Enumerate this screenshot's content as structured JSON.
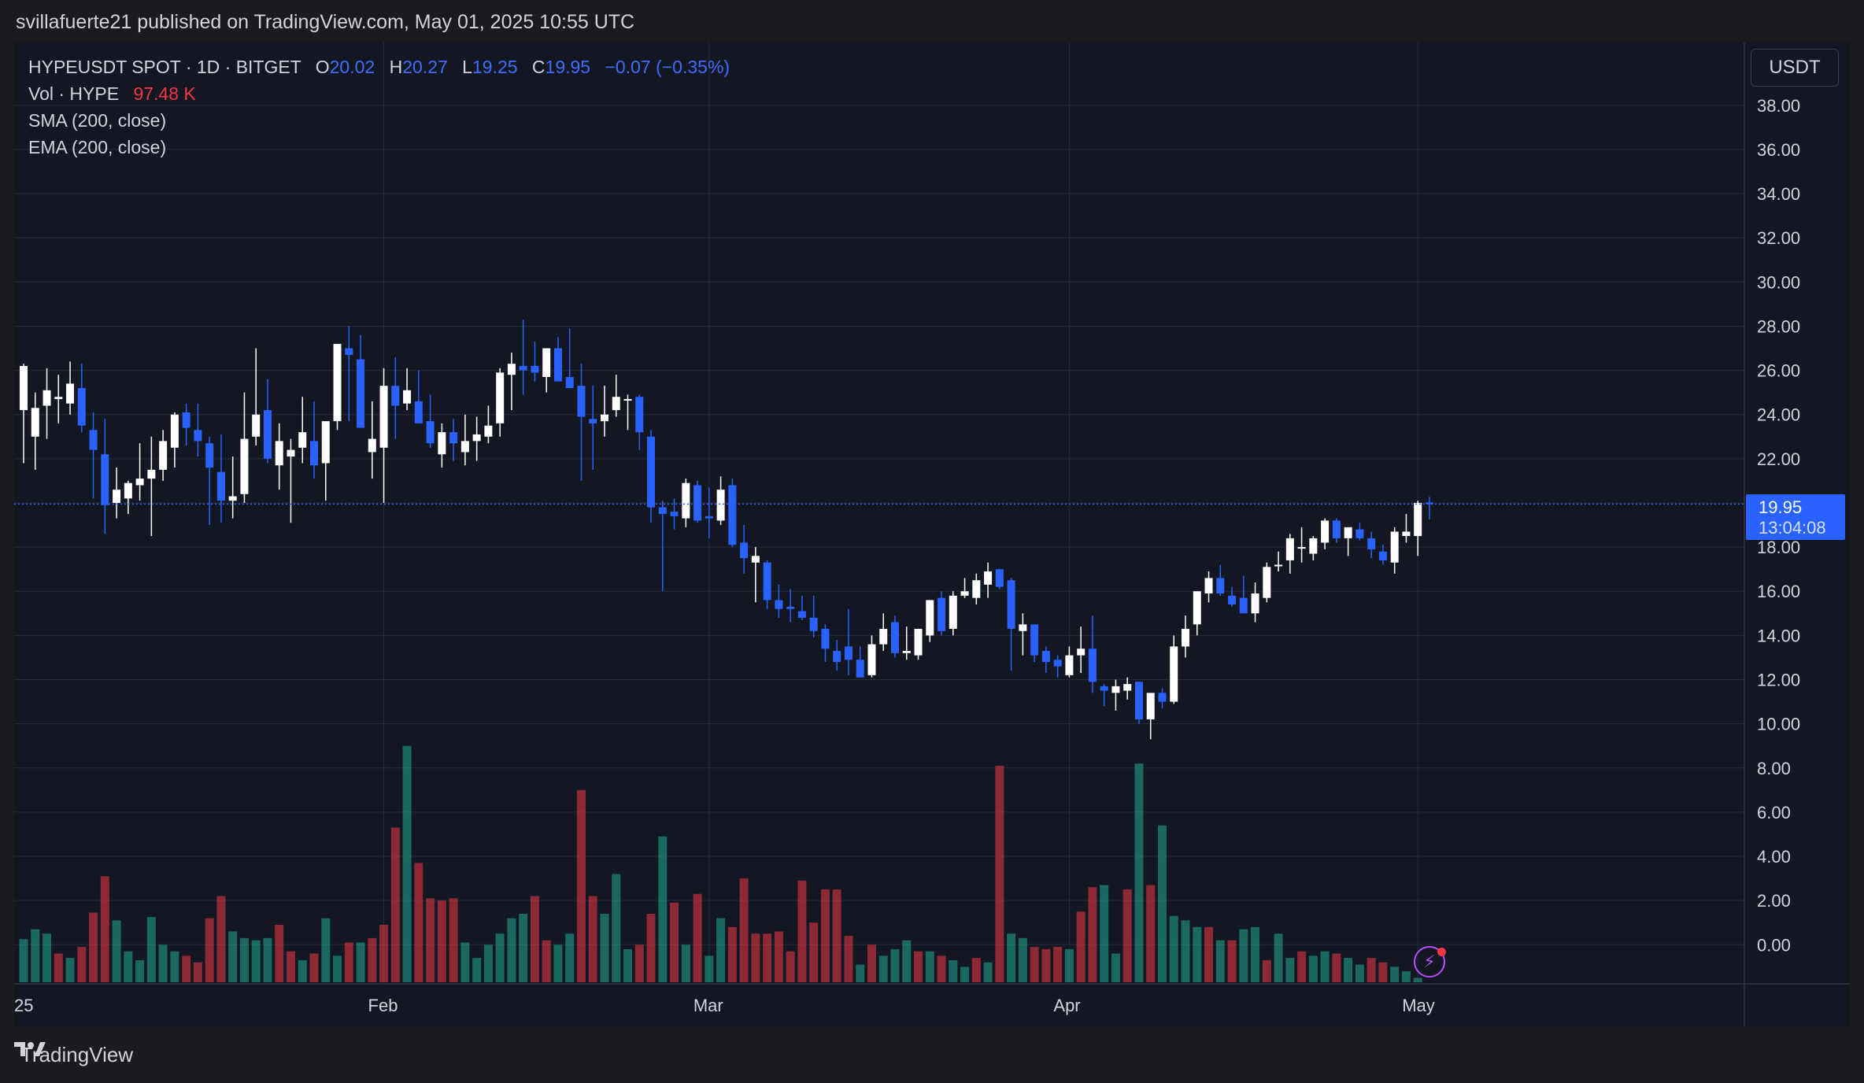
{
  "header": {
    "published": "svillafuerte21 published on TradingView.com, May 01, 2025 10:55 UTC"
  },
  "legend": {
    "symbol": "HYPEUSDT SPOT · 1D · BITGET",
    "o_label": "O",
    "o_value": "20.02",
    "h_label": "H",
    "h_value": "20.27",
    "l_label": "L",
    "l_value": "19.25",
    "c_label": "C",
    "c_value": "19.95",
    "change": "−0.07 (−0.35%)",
    "vol_label": "Vol · HYPE",
    "vol_value": "97.48 K",
    "sma": "SMA (200, close)",
    "ema": "EMA (200, close)"
  },
  "currency": "USDT",
  "price_tag": {
    "price": "19.95",
    "countdown": "13:04:08"
  },
  "footer": {
    "brand": "TradingView"
  },
  "colors": {
    "up": "#ffffff",
    "down": "#2962ff",
    "vol_up": "#22ab94",
    "vol_down": "#f23645",
    "bg": "#131722",
    "grid": "#262b38"
  },
  "chart_data": {
    "type": "candlestick",
    "y_ticks": [
      "38.00",
      "36.00",
      "34.00",
      "32.00",
      "30.00",
      "28.00",
      "26.00",
      "24.00",
      "22.00",
      "20.00",
      "18.00",
      "16.00",
      "14.00",
      "12.00",
      "10.00",
      "8.00",
      "6.00",
      "4.00",
      "2.00",
      "0.00"
    ],
    "x_ticks": [
      {
        "label": "25",
        "day": 0
      },
      {
        "label": "Feb",
        "day": 31
      },
      {
        "label": "Mar",
        "day": 59
      },
      {
        "label": "Apr",
        "day": 90
      },
      {
        "label": "May",
        "day": 120
      }
    ],
    "ylim": [
      -1.7,
      40.7
    ],
    "last_price": 19.95,
    "candles": [
      {
        "o": 24.2,
        "h": 26.3,
        "l": 21.8,
        "c": 26.2
      },
      {
        "o": 23.0,
        "h": 25.0,
        "l": 21.5,
        "c": 24.3
      },
      {
        "o": 24.4,
        "h": 26.1,
        "l": 22.9,
        "c": 25.1
      },
      {
        "o": 24.7,
        "h": 25.8,
        "l": 23.6,
        "c": 24.8
      },
      {
        "o": 24.5,
        "h": 26.4,
        "l": 24.0,
        "c": 25.4
      },
      {
        "o": 25.2,
        "h": 26.3,
        "l": 23.2,
        "c": 23.5
      },
      {
        "o": 23.3,
        "h": 24.1,
        "l": 20.2,
        "c": 22.4
      },
      {
        "o": 22.2,
        "h": 23.8,
        "l": 18.6,
        "c": 19.9
      },
      {
        "o": 20.0,
        "h": 21.6,
        "l": 19.3,
        "c": 20.6
      },
      {
        "o": 20.2,
        "h": 21.0,
        "l": 19.5,
        "c": 20.9
      },
      {
        "o": 20.8,
        "h": 22.7,
        "l": 20.1,
        "c": 21.1
      },
      {
        "o": 21.1,
        "h": 23.0,
        "l": 18.5,
        "c": 21.5
      },
      {
        "o": 21.5,
        "h": 23.3,
        "l": 21.0,
        "c": 22.8
      },
      {
        "o": 22.5,
        "h": 24.1,
        "l": 21.6,
        "c": 24.0
      },
      {
        "o": 24.1,
        "h": 24.5,
        "l": 22.6,
        "c": 23.4
      },
      {
        "o": 23.3,
        "h": 24.5,
        "l": 22.1,
        "c": 22.8
      },
      {
        "o": 22.7,
        "h": 23.0,
        "l": 19.0,
        "c": 21.6
      },
      {
        "o": 21.4,
        "h": 23.1,
        "l": 19.1,
        "c": 20.1
      },
      {
        "o": 20.1,
        "h": 22.1,
        "l": 19.3,
        "c": 20.3
      },
      {
        "o": 20.4,
        "h": 25.0,
        "l": 20.0,
        "c": 22.9
      },
      {
        "o": 23.0,
        "h": 27.0,
        "l": 22.6,
        "c": 24.0
      },
      {
        "o": 24.2,
        "h": 25.6,
        "l": 21.8,
        "c": 22.0
      },
      {
        "o": 21.7,
        "h": 23.6,
        "l": 20.6,
        "c": 22.8
      },
      {
        "o": 22.1,
        "h": 22.9,
        "l": 19.1,
        "c": 22.4
      },
      {
        "o": 22.5,
        "h": 24.8,
        "l": 21.8,
        "c": 23.2
      },
      {
        "o": 22.8,
        "h": 24.6,
        "l": 21.1,
        "c": 21.7
      },
      {
        "o": 21.8,
        "h": 23.5,
        "l": 20.1,
        "c": 23.7
      },
      {
        "o": 23.7,
        "h": 27.0,
        "l": 23.3,
        "c": 27.2
      },
      {
        "o": 27.0,
        "h": 28.0,
        "l": 23.7,
        "c": 26.7
      },
      {
        "o": 26.5,
        "h": 27.6,
        "l": 23.4,
        "c": 23.4
      },
      {
        "o": 22.3,
        "h": 24.6,
        "l": 21.1,
        "c": 22.9
      },
      {
        "o": 22.5,
        "h": 26.1,
        "l": 20.0,
        "c": 25.3
      },
      {
        "o": 25.3,
        "h": 26.6,
        "l": 22.9,
        "c": 24.4
      },
      {
        "o": 24.5,
        "h": 26.1,
        "l": 24.2,
        "c": 25.1
      },
      {
        "o": 24.6,
        "h": 26.0,
        "l": 23.9,
        "c": 23.6
      },
      {
        "o": 23.7,
        "h": 24.9,
        "l": 22.5,
        "c": 22.7
      },
      {
        "o": 22.2,
        "h": 23.6,
        "l": 21.6,
        "c": 23.2
      },
      {
        "o": 23.2,
        "h": 23.8,
        "l": 21.9,
        "c": 22.7
      },
      {
        "o": 22.3,
        "h": 24.0,
        "l": 21.7,
        "c": 22.8
      },
      {
        "o": 22.8,
        "h": 23.9,
        "l": 21.9,
        "c": 23.1
      },
      {
        "o": 23.0,
        "h": 24.4,
        "l": 22.7,
        "c": 23.5
      },
      {
        "o": 23.6,
        "h": 26.1,
        "l": 23.0,
        "c": 25.9
      },
      {
        "o": 25.8,
        "h": 26.8,
        "l": 24.2,
        "c": 26.3
      },
      {
        "o": 26.2,
        "h": 28.3,
        "l": 24.9,
        "c": 26.0
      },
      {
        "o": 26.2,
        "h": 27.3,
        "l": 25.5,
        "c": 25.9
      },
      {
        "o": 25.7,
        "h": 26.8,
        "l": 25.0,
        "c": 27.0
      },
      {
        "o": 27.0,
        "h": 27.5,
        "l": 25.6,
        "c": 25.5
      },
      {
        "o": 25.7,
        "h": 27.9,
        "l": 25.3,
        "c": 25.2
      },
      {
        "o": 25.3,
        "h": 26.3,
        "l": 21.0,
        "c": 23.9
      },
      {
        "o": 23.8,
        "h": 25.3,
        "l": 21.5,
        "c": 23.6
      },
      {
        "o": 23.7,
        "h": 25.3,
        "l": 23.0,
        "c": 24.0
      },
      {
        "o": 24.2,
        "h": 25.8,
        "l": 23.9,
        "c": 24.8
      },
      {
        "o": 24.7,
        "h": 24.9,
        "l": 23.3,
        "c": 24.7
      },
      {
        "o": 24.8,
        "h": 24.9,
        "l": 22.4,
        "c": 23.2
      },
      {
        "o": 23.0,
        "h": 23.3,
        "l": 19.1,
        "c": 19.8
      },
      {
        "o": 19.8,
        "h": 20.1,
        "l": 16.0,
        "c": 19.5
      },
      {
        "o": 19.6,
        "h": 20.2,
        "l": 18.8,
        "c": 19.4
      },
      {
        "o": 19.3,
        "h": 21.1,
        "l": 18.9,
        "c": 20.9
      },
      {
        "o": 20.8,
        "h": 21.0,
        "l": 19.1,
        "c": 19.2
      },
      {
        "o": 19.4,
        "h": 20.7,
        "l": 18.4,
        "c": 19.3
      },
      {
        "o": 19.2,
        "h": 21.2,
        "l": 19.0,
        "c": 20.6
      },
      {
        "o": 20.8,
        "h": 21.1,
        "l": 18.0,
        "c": 18.1
      },
      {
        "o": 18.2,
        "h": 19.0,
        "l": 16.8,
        "c": 17.5
      },
      {
        "o": 17.3,
        "h": 18.0,
        "l": 15.5,
        "c": 17.6
      },
      {
        "o": 17.3,
        "h": 17.4,
        "l": 15.2,
        "c": 15.6
      },
      {
        "o": 15.6,
        "h": 16.3,
        "l": 14.8,
        "c": 15.2
      },
      {
        "o": 15.3,
        "h": 16.1,
        "l": 14.6,
        "c": 15.2
      },
      {
        "o": 15.1,
        "h": 15.8,
        "l": 14.7,
        "c": 14.8
      },
      {
        "o": 14.8,
        "h": 15.8,
        "l": 13.9,
        "c": 14.2
      },
      {
        "o": 14.3,
        "h": 14.5,
        "l": 12.8,
        "c": 13.4
      },
      {
        "o": 13.3,
        "h": 13.8,
        "l": 12.4,
        "c": 12.8
      },
      {
        "o": 13.5,
        "h": 15.2,
        "l": 12.2,
        "c": 12.9
      },
      {
        "o": 12.9,
        "h": 13.5,
        "l": 12.1,
        "c": 12.1
      },
      {
        "o": 12.2,
        "h": 14.0,
        "l": 12.1,
        "c": 13.6
      },
      {
        "o": 13.6,
        "h": 15.0,
        "l": 13.3,
        "c": 14.3
      },
      {
        "o": 14.6,
        "h": 14.9,
        "l": 13.0,
        "c": 13.2
      },
      {
        "o": 13.2,
        "h": 14.4,
        "l": 12.9,
        "c": 13.3
      },
      {
        "o": 13.1,
        "h": 14.2,
        "l": 12.9,
        "c": 14.3
      },
      {
        "o": 14.0,
        "h": 15.6,
        "l": 13.7,
        "c": 15.6
      },
      {
        "o": 15.7,
        "h": 16.0,
        "l": 14.0,
        "c": 14.2
      },
      {
        "o": 14.3,
        "h": 16.0,
        "l": 14.0,
        "c": 15.8
      },
      {
        "o": 15.8,
        "h": 16.6,
        "l": 15.7,
        "c": 16.0
      },
      {
        "o": 15.7,
        "h": 16.8,
        "l": 15.4,
        "c": 16.5
      },
      {
        "o": 16.3,
        "h": 17.3,
        "l": 15.7,
        "c": 16.9
      },
      {
        "o": 17.0,
        "h": 17.0,
        "l": 16.1,
        "c": 16.2
      },
      {
        "o": 16.5,
        "h": 16.6,
        "l": 12.4,
        "c": 14.3
      },
      {
        "o": 14.2,
        "h": 15.0,
        "l": 13.1,
        "c": 14.5
      },
      {
        "o": 14.5,
        "h": 14.5,
        "l": 12.8,
        "c": 13.1
      },
      {
        "o": 13.3,
        "h": 13.5,
        "l": 12.3,
        "c": 12.8
      },
      {
        "o": 12.9,
        "h": 13.1,
        "l": 12.1,
        "c": 12.6
      },
      {
        "o": 12.2,
        "h": 13.5,
        "l": 12.1,
        "c": 13.1
      },
      {
        "o": 13.1,
        "h": 14.4,
        "l": 12.3,
        "c": 13.4
      },
      {
        "o": 13.4,
        "h": 14.9,
        "l": 11.4,
        "c": 11.9
      },
      {
        "o": 11.7,
        "h": 11.8,
        "l": 10.8,
        "c": 11.5
      },
      {
        "o": 11.4,
        "h": 12.0,
        "l": 10.6,
        "c": 11.7
      },
      {
        "o": 11.5,
        "h": 12.1,
        "l": 11.1,
        "c": 11.8
      },
      {
        "o": 11.9,
        "h": 11.9,
        "l": 10.0,
        "c": 10.2
      },
      {
        "o": 10.2,
        "h": 11.3,
        "l": 9.3,
        "c": 11.4
      },
      {
        "o": 11.4,
        "h": 11.6,
        "l": 10.7,
        "c": 11.0
      },
      {
        "o": 11.0,
        "h": 14.0,
        "l": 10.9,
        "c": 13.5
      },
      {
        "o": 13.5,
        "h": 14.9,
        "l": 13.0,
        "c": 14.3
      },
      {
        "o": 14.5,
        "h": 16.0,
        "l": 14.0,
        "c": 16.0
      },
      {
        "o": 15.9,
        "h": 16.9,
        "l": 15.5,
        "c": 16.6
      },
      {
        "o": 16.6,
        "h": 17.2,
        "l": 15.8,
        "c": 15.9
      },
      {
        "o": 15.8,
        "h": 16.2,
        "l": 15.3,
        "c": 15.4
      },
      {
        "o": 15.7,
        "h": 16.7,
        "l": 15.0,
        "c": 15.0
      },
      {
        "o": 15.0,
        "h": 16.4,
        "l": 14.6,
        "c": 15.9
      },
      {
        "o": 15.7,
        "h": 17.3,
        "l": 15.5,
        "c": 17.1
      },
      {
        "o": 17.2,
        "h": 17.8,
        "l": 16.9,
        "c": 17.2
      },
      {
        "o": 17.4,
        "h": 18.6,
        "l": 16.8,
        "c": 18.4
      },
      {
        "o": 18.0,
        "h": 18.9,
        "l": 17.3,
        "c": 18.0
      },
      {
        "o": 17.7,
        "h": 18.5,
        "l": 17.4,
        "c": 18.4
      },
      {
        "o": 18.2,
        "h": 19.3,
        "l": 17.9,
        "c": 19.2
      },
      {
        "o": 19.2,
        "h": 19.3,
        "l": 18.2,
        "c": 18.4
      },
      {
        "o": 18.4,
        "h": 18.9,
        "l": 17.6,
        "c": 18.9
      },
      {
        "o": 18.8,
        "h": 19.1,
        "l": 18.3,
        "c": 18.4
      },
      {
        "o": 18.4,
        "h": 18.7,
        "l": 17.5,
        "c": 17.9
      },
      {
        "o": 17.8,
        "h": 18.1,
        "l": 17.2,
        "c": 17.4
      },
      {
        "o": 17.3,
        "h": 18.9,
        "l": 16.8,
        "c": 18.7
      },
      {
        "o": 18.5,
        "h": 19.5,
        "l": 18.2,
        "c": 18.7
      },
      {
        "o": 18.5,
        "h": 20.1,
        "l": 17.6,
        "c": 20.0
      },
      {
        "o": 20.02,
        "h": 20.27,
        "l": 19.25,
        "c": 19.95
      }
    ],
    "volume": [
      {
        "v": 0.25,
        "up": true
      },
      {
        "v": 0.7,
        "up": true
      },
      {
        "v": 0.5,
        "up": true
      },
      {
        "v": -0.4,
        "up": false
      },
      {
        "v": -0.6,
        "up": true
      },
      {
        "v": -0.1,
        "up": false
      },
      {
        "v": 1.45,
        "up": false
      },
      {
        "v": 3.1,
        "up": false
      },
      {
        "v": 1.1,
        "up": true
      },
      {
        "v": -0.3,
        "up": true
      },
      {
        "v": -0.7,
        "up": true
      },
      {
        "v": 1.25,
        "up": true
      },
      {
        "v": 0.0,
        "up": true
      },
      {
        "v": -0.3,
        "up": true
      },
      {
        "v": -0.5,
        "up": false
      },
      {
        "v": -0.8,
        "up": false
      },
      {
        "v": 1.2,
        "up": false
      },
      {
        "v": 2.2,
        "up": false
      },
      {
        "v": 0.6,
        "up": true
      },
      {
        "v": 0.3,
        "up": true
      },
      {
        "v": 0.2,
        "up": true
      },
      {
        "v": 0.3,
        "up": true
      },
      {
        "v": 0.9,
        "up": false
      },
      {
        "v": -0.3,
        "up": false
      },
      {
        "v": -0.7,
        "up": true
      },
      {
        "v": -0.4,
        "up": false
      },
      {
        "v": 1.2,
        "up": true
      },
      {
        "v": -0.5,
        "up": true
      },
      {
        "v": 0.1,
        "up": false
      },
      {
        "v": 0.1,
        "up": true
      },
      {
        "v": 0.3,
        "up": false
      },
      {
        "v": 0.9,
        "up": false
      },
      {
        "v": 5.3,
        "up": false
      },
      {
        "v": 9.0,
        "up": true
      },
      {
        "v": 3.7,
        "up": false
      },
      {
        "v": 2.1,
        "up": false
      },
      {
        "v": 2.0,
        "up": false
      },
      {
        "v": 2.1,
        "up": false
      },
      {
        "v": 0.1,
        "up": true
      },
      {
        "v": -0.6,
        "up": true
      },
      {
        "v": 0.0,
        "up": true
      },
      {
        "v": 0.5,
        "up": true
      },
      {
        "v": 1.2,
        "up": true
      },
      {
        "v": 1.4,
        "up": true
      },
      {
        "v": 2.2,
        "up": false
      },
      {
        "v": 0.2,
        "up": false
      },
      {
        "v": 0.0,
        "up": true
      },
      {
        "v": 0.5,
        "up": true
      },
      {
        "v": 7.0,
        "up": false
      },
      {
        "v": 2.2,
        "up": false
      },
      {
        "v": 1.4,
        "up": true
      },
      {
        "v": 3.2,
        "up": true
      },
      {
        "v": -0.2,
        "up": true
      },
      {
        "v": 0.0,
        "up": false
      },
      {
        "v": 1.4,
        "up": false
      },
      {
        "v": 4.9,
        "up": true
      },
      {
        "v": 1.9,
        "up": false
      },
      {
        "v": 0.0,
        "up": true
      },
      {
        "v": 2.3,
        "up": false
      },
      {
        "v": -0.5,
        "up": true
      },
      {
        "v": 1.2,
        "up": true
      },
      {
        "v": 0.8,
        "up": false
      },
      {
        "v": 3.0,
        "up": false
      },
      {
        "v": 0.5,
        "up": false
      },
      {
        "v": 0.5,
        "up": false
      },
      {
        "v": 0.6,
        "up": false
      },
      {
        "v": -0.3,
        "up": false
      },
      {
        "v": 2.9,
        "up": false
      },
      {
        "v": 1.0,
        "up": false
      },
      {
        "v": 2.5,
        "up": false
      },
      {
        "v": 2.5,
        "up": false
      },
      {
        "v": 0.4,
        "up": false
      },
      {
        "v": -0.9,
        "up": true
      },
      {
        "v": 0.0,
        "up": false
      },
      {
        "v": -0.5,
        "up": true
      },
      {
        "v": -0.2,
        "up": true
      },
      {
        "v": 0.2,
        "up": true
      },
      {
        "v": -0.3,
        "up": false
      },
      {
        "v": -0.3,
        "up": true
      },
      {
        "v": -0.5,
        "up": false
      },
      {
        "v": -0.7,
        "up": true
      },
      {
        "v": -1.0,
        "up": true
      },
      {
        "v": -0.6,
        "up": false
      },
      {
        "v": -0.8,
        "up": true
      },
      {
        "v": 8.1,
        "up": false
      },
      {
        "v": 0.5,
        "up": true
      },
      {
        "v": 0.3,
        "up": true
      },
      {
        "v": -0.1,
        "up": false
      },
      {
        "v": -0.2,
        "up": false
      },
      {
        "v": -0.1,
        "up": false
      },
      {
        "v": -0.2,
        "up": true
      },
      {
        "v": 1.5,
        "up": false
      },
      {
        "v": 2.6,
        "up": false
      },
      {
        "v": 2.7,
        "up": true
      },
      {
        "v": -0.4,
        "up": true
      },
      {
        "v": 2.5,
        "up": false
      },
      {
        "v": 8.2,
        "up": true
      },
      {
        "v": 2.7,
        "up": false
      },
      {
        "v": 5.4,
        "up": true
      },
      {
        "v": 1.3,
        "up": true
      },
      {
        "v": 1.1,
        "up": true
      },
      {
        "v": 0.8,
        "up": true
      },
      {
        "v": 0.8,
        "up": false
      },
      {
        "v": 0.2,
        "up": true
      },
      {
        "v": 0.2,
        "up": false
      },
      {
        "v": 0.7,
        "up": true
      },
      {
        "v": 0.8,
        "up": true
      },
      {
        "v": -0.7,
        "up": false
      },
      {
        "v": 0.5,
        "up": true
      },
      {
        "v": -0.6,
        "up": true
      },
      {
        "v": -0.3,
        "up": false
      },
      {
        "v": -0.5,
        "up": true
      },
      {
        "v": -0.3,
        "up": true
      },
      {
        "v": -0.4,
        "up": false
      },
      {
        "v": -0.6,
        "up": true
      },
      {
        "v": -0.9,
        "up": true
      },
      {
        "v": -0.6,
        "up": false
      },
      {
        "v": -0.8,
        "up": false
      },
      {
        "v": -1.0,
        "up": true
      },
      {
        "v": -1.2,
        "up": true
      },
      {
        "v": -1.5,
        "up": true
      }
    ]
  }
}
